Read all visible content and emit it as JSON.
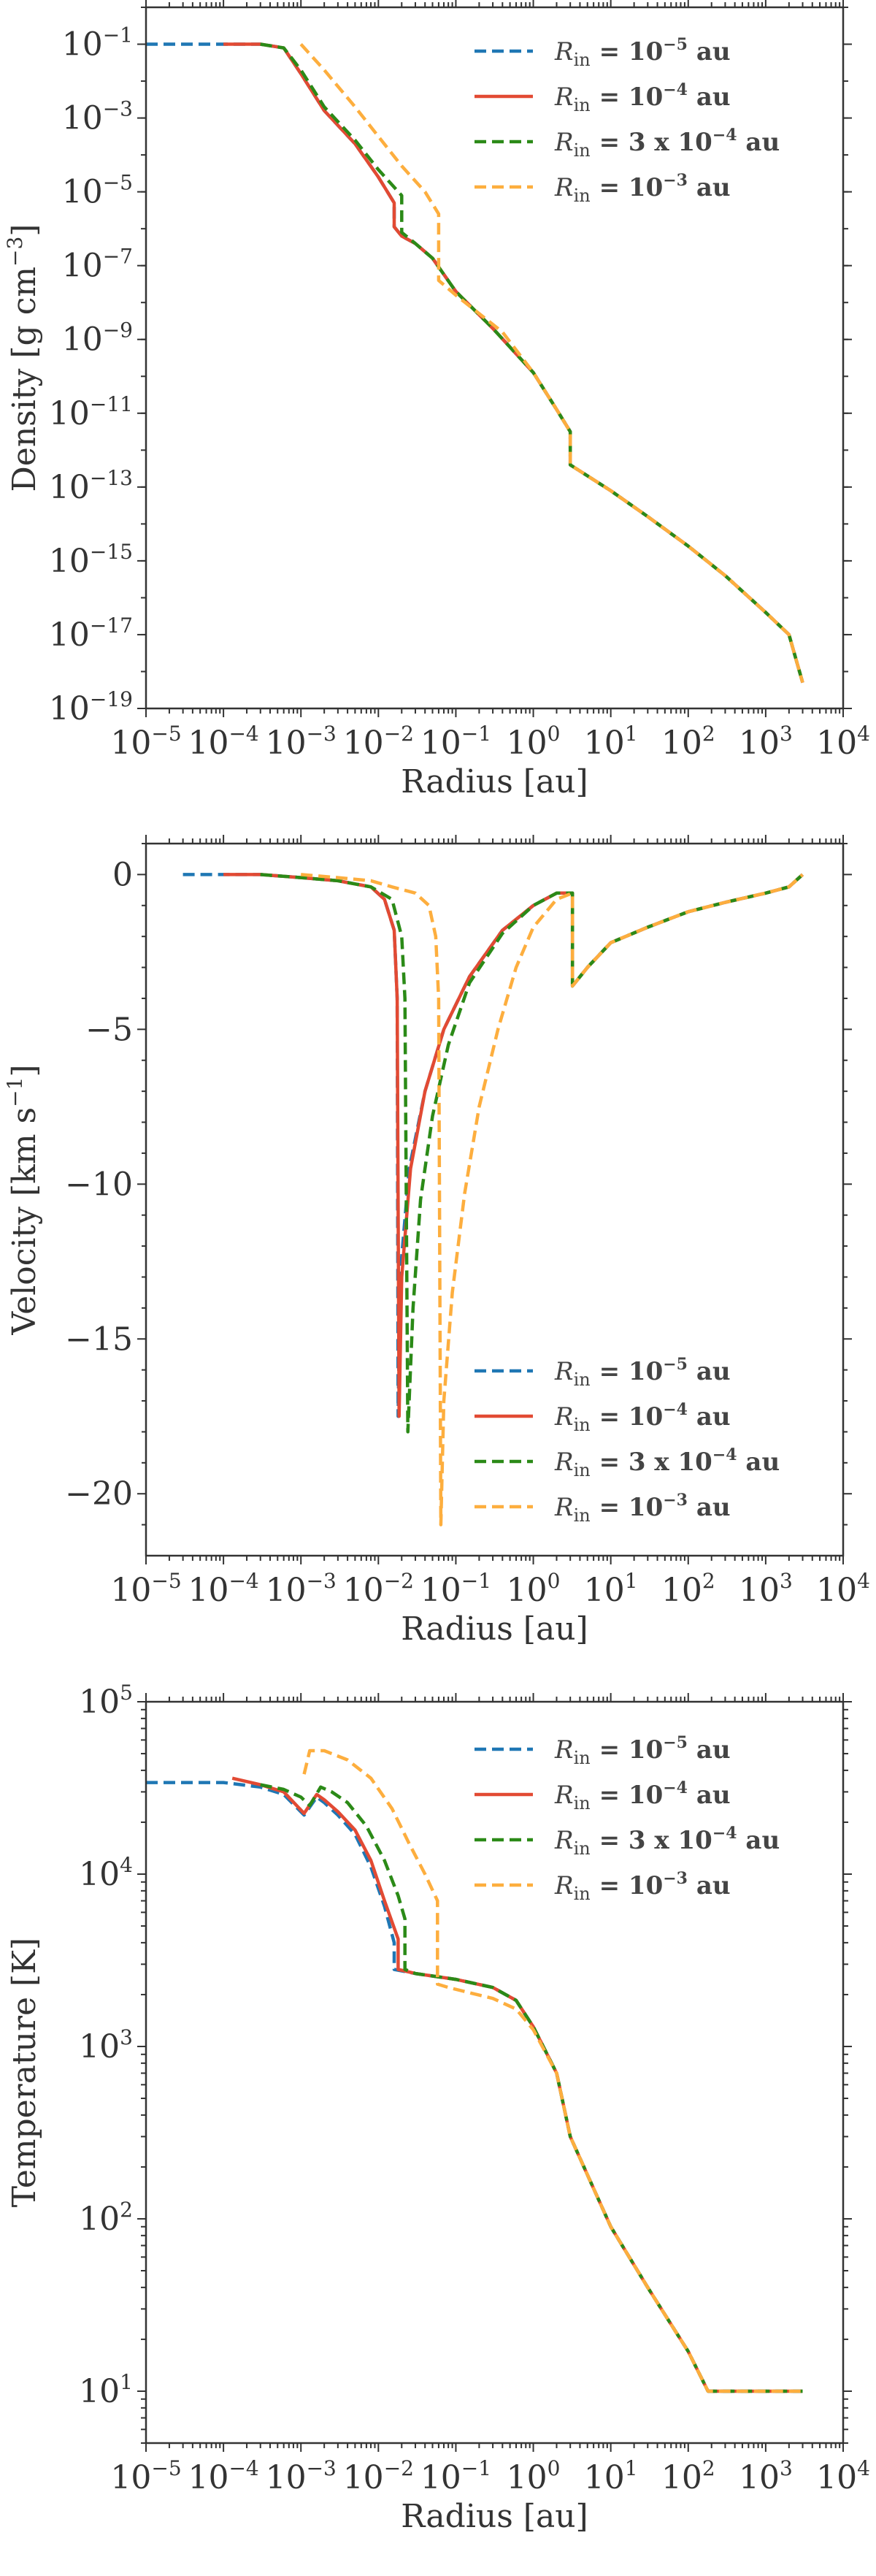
{
  "chart_data": [
    {
      "type": "line",
      "title": "",
      "xlabel": "Radius [au]",
      "ylabel": "Density [g cm^-3]",
      "xscale": "log",
      "yscale": "log",
      "xlim": [
        1e-05,
        10000.0
      ],
      "ylim": [
        1e-19,
        1.0
      ],
      "legend_position": "top-right",
      "x_tick_labels": [
        "10^-5",
        "10^-4",
        "10^-3",
        "10^-2",
        "10^-1",
        "10^0",
        "10^1",
        "10^2",
        "10^3",
        "10^4"
      ],
      "y_tick_labels": [
        "10^-1",
        "10^-3",
        "10^-5",
        "10^-7",
        "10^-9",
        "10^-11",
        "10^-13",
        "10^-15",
        "10^-17",
        "10^-19"
      ],
      "series": [
        {
          "name": "R_in = 10^-5 au",
          "color": "#1f77b4",
          "dash": "dashed",
          "x": [
            1e-05,
            3e-05,
            0.0001,
            0.0003,
            0.0006,
            0.001,
            0.002,
            0.005,
            0.01,
            0.016,
            0.016,
            0.02,
            0.03,
            0.05,
            0.1,
            0.3,
            1,
            2,
            3,
            3,
            10,
            30,
            100,
            300,
            1000,
            2000,
            3000
          ],
          "y": [
            -1,
            -1,
            -1,
            -1,
            -1.1,
            -1.8,
            -2.8,
            -3.7,
            -4.6,
            -5.3,
            -5.95,
            -6.2,
            -6.4,
            -6.8,
            -7.7,
            -8.7,
            -9.9,
            -10.9,
            -11.5,
            -12.4,
            -13.1,
            -13.8,
            -14.6,
            -15.4,
            -16.4,
            -17,
            -18.3
          ]
        },
        {
          "name": "R_in = 10^-4 au",
          "color": "#e24a33",
          "dash": "solid",
          "x": [
            0.0001,
            0.0003,
            0.0006,
            0.001,
            0.002,
            0.005,
            0.01,
            0.016,
            0.016,
            0.02,
            0.03,
            0.05,
            0.1,
            0.3,
            1,
            2,
            3,
            3,
            10,
            30,
            100,
            300,
            1000,
            2000,
            3000
          ],
          "y": [
            -1,
            -1,
            -1.1,
            -1.8,
            -2.8,
            -3.7,
            -4.6,
            -5.3,
            -5.95,
            -6.2,
            -6.4,
            -6.8,
            -7.7,
            -8.7,
            -9.9,
            -10.9,
            -11.5,
            -12.4,
            -13.1,
            -13.8,
            -14.6,
            -15.4,
            -16.4,
            -17,
            -18.3
          ]
        },
        {
          "name": "R_in = 3 x 10^-4 au",
          "color": "#2b8a17",
          "dash": "dashed",
          "x": [
            0.0003,
            0.0006,
            0.001,
            0.002,
            0.005,
            0.01,
            0.02,
            0.02,
            0.03,
            0.05,
            0.1,
            0.3,
            1,
            2,
            3,
            3,
            10,
            30,
            100,
            300,
            1000,
            2000,
            3000
          ],
          "y": [
            -1,
            -1.1,
            -1.7,
            -2.7,
            -3.6,
            -4.4,
            -5.1,
            -6.1,
            -6.4,
            -6.8,
            -7.7,
            -8.7,
            -9.9,
            -10.9,
            -11.5,
            -12.4,
            -13.1,
            -13.8,
            -14.6,
            -15.4,
            -16.4,
            -17,
            -18.3
          ]
        },
        {
          "name": "R_in = 10^-3 au",
          "color": "#fdae3e",
          "dash": "dashed",
          "x": [
            0.001,
            0.002,
            0.005,
            0.01,
            0.02,
            0.04,
            0.06,
            0.06,
            0.1,
            0.2,
            0.4,
            1,
            2,
            3,
            3,
            10,
            30,
            100,
            300,
            1000,
            2000,
            3000
          ],
          "y": [
            -1,
            -1.7,
            -2.7,
            -3.5,
            -4.3,
            -5,
            -5.6,
            -7.4,
            -7.8,
            -8.3,
            -8.8,
            -9.9,
            -10.9,
            -11.5,
            -12.4,
            -13.1,
            -13.8,
            -14.6,
            -15.4,
            -16.4,
            -17,
            -18.3
          ]
        }
      ]
    },
    {
      "type": "line",
      "title": "",
      "xlabel": "Radius [au]",
      "ylabel": "Velocity [km s^-1]",
      "xscale": "log",
      "yscale": "linear",
      "xlim": [
        1e-05,
        10000.0
      ],
      "ylim": [
        -22,
        1
      ],
      "legend_position": "bottom-right",
      "x_tick_labels": [
        "10^-5",
        "10^-4",
        "10^-3",
        "10^-2",
        "10^-1",
        "10^0",
        "10^1",
        "10^2",
        "10^3",
        "10^4"
      ],
      "y_tick_labels": [
        "0",
        "−5",
        "−10",
        "−15",
        "−20"
      ],
      "series": [
        {
          "name": "R_in = 10^-5 au",
          "color": "#1f77b4",
          "dash": "dashed",
          "x": [
            3e-05,
            0.0001,
            0.0003,
            0.001,
            0.003,
            0.008,
            0.012,
            0.016,
            0.0175,
            0.018,
            0.019,
            0.025,
            0.04,
            0.07,
            0.15,
            0.4,
            1,
            2,
            3.2,
            3.2,
            5,
            10,
            30,
            100,
            300,
            1000,
            2000,
            3000
          ],
          "y": [
            0,
            0,
            0,
            -0.1,
            -0.2,
            -0.4,
            -0.8,
            -1.8,
            -4,
            -17.5,
            -13,
            -9.5,
            -7,
            -5,
            -3.3,
            -1.8,
            -1,
            -0.6,
            -0.6,
            -3.6,
            -3,
            -2.2,
            -1.7,
            -1.2,
            -0.9,
            -0.6,
            -0.4,
            0
          ]
        },
        {
          "name": "R_in = 10^-4 au",
          "color": "#e24a33",
          "dash": "solid",
          "x": [
            0.0001,
            0.0003,
            0.001,
            0.003,
            0.008,
            0.012,
            0.016,
            0.0175,
            0.0185,
            0.02,
            0.026,
            0.04,
            0.07,
            0.15,
            0.4,
            1,
            2,
            3.2,
            3.2,
            5,
            10,
            30,
            100,
            300,
            1000,
            2000,
            3000
          ],
          "y": [
            0,
            0,
            -0.1,
            -0.2,
            -0.4,
            -0.8,
            -1.8,
            -4,
            -17.5,
            -13,
            -9.5,
            -7,
            -5,
            -3.3,
            -1.8,
            -1,
            -0.6,
            -0.6,
            -3.6,
            -3,
            -2.2,
            -1.7,
            -1.2,
            -0.9,
            -0.6,
            -0.4,
            0
          ]
        },
        {
          "name": "R_in = 3 x 10^-4 au",
          "color": "#2b8a17",
          "dash": "dashed",
          "x": [
            0.0003,
            0.001,
            0.003,
            0.008,
            0.015,
            0.02,
            0.022,
            0.024,
            0.028,
            0.035,
            0.05,
            0.08,
            0.15,
            0.4,
            1,
            2,
            3.2,
            3.2,
            5,
            10,
            30,
            100,
            300,
            1000,
            2000,
            3000
          ],
          "y": [
            0,
            -0.1,
            -0.2,
            -0.4,
            -0.8,
            -2,
            -4,
            -18,
            -14,
            -10.5,
            -7.8,
            -5.5,
            -3.5,
            -1.9,
            -1,
            -0.6,
            -0.6,
            -3.6,
            -3,
            -2.2,
            -1.7,
            -1.2,
            -0.9,
            -0.6,
            -0.4,
            0
          ]
        },
        {
          "name": "R_in = 10^-3 au",
          "color": "#fdae3e",
          "dash": "dashed",
          "x": [
            0.001,
            0.003,
            0.008,
            0.015,
            0.03,
            0.045,
            0.055,
            0.06,
            0.064,
            0.07,
            0.09,
            0.13,
            0.2,
            0.35,
            0.6,
            1,
            2,
            3.2,
            3.2,
            5,
            10,
            30,
            100,
            300,
            1000,
            2000,
            3000
          ],
          "y": [
            0,
            -0.1,
            -0.2,
            -0.4,
            -0.6,
            -1,
            -2,
            -4,
            -21,
            -17,
            -13.5,
            -10.3,
            -7.5,
            -5,
            -3,
            -1.7,
            -0.8,
            -0.6,
            -3.6,
            -3,
            -2.2,
            -1.7,
            -1.2,
            -0.9,
            -0.6,
            -0.4,
            0
          ]
        }
      ]
    },
    {
      "type": "line",
      "title": "",
      "xlabel": "Radius [au]",
      "ylabel": "Temperature [K]",
      "xscale": "log",
      "yscale": "log",
      "xlim": [
        1e-05,
        10000.0
      ],
      "ylim": [
        5,
        100000.0
      ],
      "legend_position": "top-right",
      "x_tick_labels": [
        "10^-5",
        "10^-4",
        "10^-3",
        "10^-2",
        "10^-1",
        "10^0",
        "10^1",
        "10^2",
        "10^3",
        "10^4"
      ],
      "y_tick_labels": [
        "10^5",
        "10^4",
        "10^3",
        "10^2",
        "10^1"
      ],
      "series": [
        {
          "name": "R_in = 10^-5 au",
          "color": "#1f77b4",
          "dash": "dashed",
          "x": [
            1e-05,
            3e-05,
            0.0001,
            0.0003,
            0.0006,
            0.0011,
            0.0016,
            0.002,
            0.003,
            0.005,
            0.008,
            0.012,
            0.016,
            0.016,
            0.03,
            0.1,
            0.3,
            0.6,
            1,
            2,
            3,
            5,
            10,
            30,
            100,
            180,
            300,
            1000,
            3000
          ],
          "y": [
            34000,
            34000,
            34000,
            32000,
            29000,
            22000,
            28000,
            26000,
            22000,
            17000,
            11000,
            6500,
            4000,
            2800,
            2650,
            2450,
            2200,
            1850,
            1300,
            700,
            300,
            180,
            90,
            40,
            17,
            10,
            10,
            10,
            10
          ]
        },
        {
          "name": "R_in = 10^-4 au",
          "color": "#e24a33",
          "dash": "solid",
          "x": [
            0.00013,
            0.0003,
            0.0006,
            0.0011,
            0.0016,
            0.002,
            0.003,
            0.005,
            0.008,
            0.012,
            0.018,
            0.018,
            0.03,
            0.1,
            0.3,
            0.6,
            1,
            2,
            3,
            5,
            10,
            30,
            100,
            180,
            300,
            1000,
            3000
          ],
          "y": [
            36000,
            33000,
            30000,
            22500,
            29000,
            27000,
            23000,
            18000,
            12000,
            7000,
            4200,
            2800,
            2650,
            2450,
            2200,
            1850,
            1300,
            700,
            300,
            180,
            90,
            40,
            17,
            10,
            10,
            10,
            10
          ]
        },
        {
          "name": "R_in = 3 x 10^-4 au",
          "color": "#2b8a17",
          "dash": "dashed",
          "x": [
            0.0003,
            0.0006,
            0.001,
            0.0013,
            0.0018,
            0.0025,
            0.004,
            0.007,
            0.012,
            0.018,
            0.022,
            0.022,
            0.03,
            0.1,
            0.3,
            0.6,
            1,
            2,
            3,
            5,
            10,
            30,
            100,
            180,
            300,
            1000,
            3000
          ],
          "y": [
            33000,
            31000,
            28000,
            25000,
            32000,
            30000,
            26000,
            19000,
            12000,
            7500,
            5500,
            2800,
            2650,
            2450,
            2200,
            1850,
            1300,
            700,
            300,
            180,
            90,
            40,
            17,
            10,
            10,
            10,
            10
          ]
        },
        {
          "name": "R_in = 10^-3 au",
          "color": "#fdae3e",
          "dash": "dashed",
          "x": [
            0.0011,
            0.0013,
            0.002,
            0.004,
            0.008,
            0.015,
            0.025,
            0.04,
            0.058,
            0.058,
            0.08,
            0.15,
            0.3,
            0.6,
            1,
            2,
            3,
            5,
            10,
            30,
            100,
            180,
            300,
            1000,
            3000
          ],
          "y": [
            38000,
            52000,
            52000,
            46000,
            36000,
            24000,
            15000,
            10000,
            7000,
            2300,
            2200,
            2050,
            1900,
            1650,
            1250,
            700,
            300,
            180,
            90,
            40,
            17,
            10,
            10,
            10,
            10
          ]
        }
      ]
    }
  ]
}
